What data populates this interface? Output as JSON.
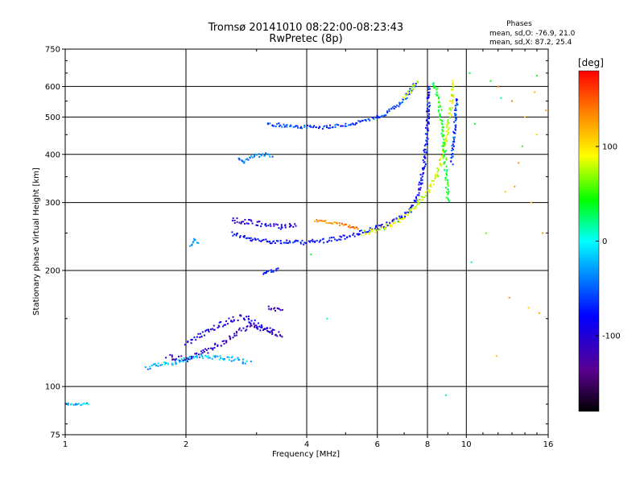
{
  "chart_data": {
    "type": "scatter",
    "title": "Tromsø 20141010 08:22:00-08:23:43",
    "subtitle": "RwPretec (8p)",
    "info": {
      "heading": "Phases",
      "line1": "mean, sd,O: -76.9, 21.0",
      "line2": "mean, sd,X:  87.2, 25.4"
    },
    "xlabel": "Frequency [MHz]",
    "ylabel": "Stationary phase Virtual Height [km]",
    "x_scale": "log",
    "y_scale": "log",
    "xlim": [
      1,
      16
    ],
    "ylim": [
      75,
      750
    ],
    "x_ticks": [
      1,
      2,
      4,
      6,
      8,
      10,
      16
    ],
    "x_tick_labels": [
      "1",
      "2",
      "4",
      "6",
      "8",
      "10",
      "16"
    ],
    "y_ticks": [
      75,
      100,
      200,
      300,
      400,
      500,
      600,
      750
    ],
    "y_tick_labels": [
      "75",
      "100",
      "200",
      "300",
      "400",
      "500",
      "600",
      "750"
    ],
    "grid": true,
    "colorbar": {
      "label": "[deg]",
      "range": [
        -180,
        180
      ],
      "ticks": [
        100,
        0,
        -100
      ],
      "tick_labels": [
        "100",
        "0",
        "-100"
      ]
    },
    "traces": [
      {
        "kind": "O-mode F layer",
        "phase": -80,
        "jitter": 4,
        "points": [
          [
            2.6,
            250
          ],
          [
            2.9,
            240
          ],
          [
            3.3,
            238
          ],
          [
            3.8,
            236
          ],
          [
            4.3,
            238
          ],
          [
            4.8,
            242
          ],
          [
            5.3,
            248
          ],
          [
            5.8,
            255
          ],
          [
            6.3,
            262
          ],
          [
            6.8,
            272
          ],
          [
            7.2,
            285
          ],
          [
            7.5,
            305
          ],
          [
            7.7,
            335
          ],
          [
            7.85,
            380
          ],
          [
            7.95,
            430
          ],
          [
            8.0,
            480
          ],
          [
            8.05,
            540
          ],
          [
            8.1,
            600
          ]
        ]
      },
      {
        "kind": "F layer upper band",
        "phase": -95,
        "jitter": 5,
        "points": [
          [
            2.6,
            270
          ],
          [
            3.0,
            265
          ],
          [
            3.4,
            260
          ],
          [
            3.8,
            262
          ]
        ]
      },
      {
        "kind": "X-mode F layer",
        "phase": 85,
        "jitter": 4,
        "points": [
          [
            5.5,
            250
          ],
          [
            6.0,
            255
          ],
          [
            6.5,
            262
          ],
          [
            7.0,
            275
          ],
          [
            7.5,
            295
          ],
          [
            8.0,
            320
          ],
          [
            8.4,
            350
          ],
          [
            8.7,
            390
          ],
          [
            8.9,
            440
          ],
          [
            9.1,
            500
          ],
          [
            9.2,
            560
          ],
          [
            9.3,
            620
          ]
        ]
      },
      {
        "kind": "X-mode F layer",
        "phase": 40,
        "jitter": 4,
        "points": [
          [
            8.3,
            620
          ],
          [
            8.5,
            560
          ],
          [
            8.7,
            480
          ],
          [
            8.8,
            420
          ],
          [
            8.9,
            360
          ],
          [
            9.0,
            300
          ]
        ]
      },
      {
        "kind": "X-mode F layer",
        "phase": -60,
        "jitter": 3,
        "points": [
          [
            9.2,
            380
          ],
          [
            9.3,
            440
          ],
          [
            9.4,
            500
          ],
          [
            9.5,
            560
          ]
        ]
      },
      {
        "kind": "multihop",
        "phase": -60,
        "jitter": 3,
        "points": [
          [
            3.2,
            480
          ],
          [
            3.7,
            472
          ],
          [
            4.3,
            470
          ],
          [
            5.0,
            476
          ],
          [
            5.7,
            490
          ],
          [
            6.3,
            510
          ],
          [
            6.8,
            540
          ],
          [
            7.2,
            575
          ],
          [
            7.5,
            615
          ]
        ]
      },
      {
        "kind": "multihop",
        "phase": 70,
        "jitter": 3,
        "points": [
          [
            7.0,
            560
          ],
          [
            7.3,
            590
          ],
          [
            7.6,
            625
          ]
        ]
      },
      {
        "kind": "sporadic",
        "phase": 135,
        "jitter": 2,
        "points": [
          [
            4.2,
            270
          ],
          [
            4.6,
            266
          ],
          [
            5.0,
            262
          ],
          [
            5.4,
            256
          ]
        ]
      },
      {
        "kind": "E region",
        "phase": -110,
        "jitter": 5,
        "points": [
          [
            1.8,
            120
          ],
          [
            2.0,
            118
          ],
          [
            2.3,
            125
          ],
          [
            2.6,
            135
          ],
          [
            2.9,
            145
          ],
          [
            3.2,
            140
          ],
          [
            3.5,
            135
          ]
        ]
      },
      {
        "kind": "E region",
        "phase": -95,
        "jitter": 5,
        "points": [
          [
            2.0,
            130
          ],
          [
            2.3,
            140
          ],
          [
            2.6,
            150
          ],
          [
            2.8,
            152
          ],
          [
            3.0,
            145
          ],
          [
            3.3,
            138
          ]
        ]
      },
      {
        "kind": "E region",
        "phase": -20,
        "jitter": 4,
        "points": [
          [
            1.6,
            112
          ],
          [
            1.9,
            116
          ],
          [
            2.2,
            120
          ],
          [
            2.6,
            118
          ],
          [
            2.9,
            115
          ]
        ]
      },
      {
        "kind": "low echo",
        "phase": -20,
        "jitter": 2,
        "points": [
          [
            1.0,
            90
          ],
          [
            1.05,
            90
          ],
          [
            1.1,
            90
          ],
          [
            1.15,
            90
          ]
        ]
      },
      {
        "kind": "cluster",
        "phase": -70,
        "jitter": 3,
        "points": [
          [
            3.1,
            195
          ],
          [
            3.2,
            200
          ],
          [
            3.3,
            198
          ],
          [
            3.4,
            202
          ]
        ]
      },
      {
        "kind": "cluster",
        "phase": -40,
        "jitter": 3,
        "points": [
          [
            2.7,
            390
          ],
          [
            2.8,
            380
          ],
          [
            2.9,
            395
          ],
          [
            3.2,
            400
          ],
          [
            3.3,
            395
          ]
        ]
      },
      {
        "kind": "cluster",
        "phase": -30,
        "jitter": 2,
        "points": [
          [
            2.05,
            230
          ],
          [
            2.1,
            240
          ],
          [
            2.15,
            235
          ]
        ]
      },
      {
        "kind": "cluster",
        "phase": -120,
        "jitter": 3,
        "points": [
          [
            3.2,
            160
          ],
          [
            3.4,
            158
          ],
          [
            3.5,
            160
          ]
        ]
      },
      {
        "kind": "scattered",
        "phase": 120,
        "jitter": 0,
        "points": [
          [
            12,
            600
          ],
          [
            13,
            550
          ],
          [
            14,
            500
          ],
          [
            15,
            450
          ],
          [
            13.5,
            380
          ],
          [
            12.5,
            320
          ],
          [
            14.5,
            300
          ],
          [
            15.5,
            250
          ],
          [
            12.8,
            170
          ],
          [
            14.3,
            160
          ],
          [
            15.2,
            155
          ],
          [
            11.9,
            120
          ],
          [
            13.2,
            330
          ],
          [
            14.8,
            580
          ],
          [
            15.8,
            520
          ]
        ]
      },
      {
        "kind": "scattered",
        "phase": 40,
        "jitter": 0,
        "points": [
          [
            10.2,
            650
          ],
          [
            11.5,
            620
          ],
          [
            12.2,
            560
          ],
          [
            13.8,
            420
          ],
          [
            15.0,
            640
          ],
          [
            10.5,
            480
          ],
          [
            11.2,
            250
          ],
          [
            10.3,
            210
          ],
          [
            8.9,
            95
          ],
          [
            4.5,
            150
          ],
          [
            4.1,
            220
          ]
        ]
      }
    ]
  }
}
